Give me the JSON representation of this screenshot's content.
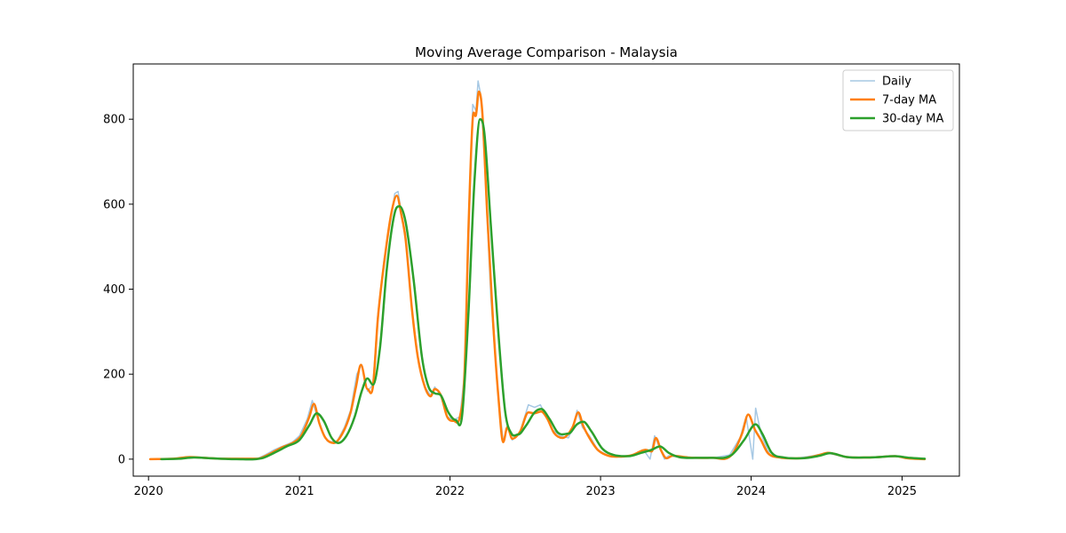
{
  "chart_data": {
    "type": "line",
    "title": "Moving Average Comparison - Malaysia",
    "xlabel": "",
    "ylabel": "",
    "x_range": [
      "2019-11-25",
      "2025-05-20"
    ],
    "ylim": [
      -40,
      930
    ],
    "x_ticks": [
      "2020",
      "2021",
      "2022",
      "2023",
      "2024",
      "2025"
    ],
    "y_ticks": [
      0,
      200,
      400,
      600,
      800
    ],
    "grid": false,
    "legend_position": "top-right",
    "series": [
      {
        "name": "Daily",
        "color": "#a6c8e4",
        "points": [
          [
            "2020-01-05",
            0
          ],
          [
            "2020-02-15",
            0
          ],
          [
            "2020-03-20",
            2
          ],
          [
            "2020-04-10",
            5
          ],
          [
            "2020-05-01",
            3
          ],
          [
            "2020-06-01",
            1
          ],
          [
            "2020-08-01",
            0
          ],
          [
            "2020-09-20",
            1
          ],
          [
            "2020-10-10",
            10
          ],
          [
            "2020-11-01",
            22
          ],
          [
            "2020-11-25",
            32
          ],
          [
            "2020-12-15",
            40
          ],
          [
            "2021-01-01",
            55
          ],
          [
            "2021-01-20",
            95
          ],
          [
            "2021-02-01",
            138
          ],
          [
            "2021-02-10",
            110
          ],
          [
            "2021-02-25",
            65
          ],
          [
            "2021-03-10",
            42
          ],
          [
            "2021-04-01",
            40
          ],
          [
            "2021-04-20",
            75
          ],
          [
            "2021-05-05",
            115
          ],
          [
            "2021-05-20",
            200
          ],
          [
            "2021-06-01",
            222
          ],
          [
            "2021-06-15",
            160
          ],
          [
            "2021-06-28",
            175
          ],
          [
            "2021-07-10",
            340
          ],
          [
            "2021-07-25",
            470
          ],
          [
            "2021-08-10",
            560
          ],
          [
            "2021-08-20",
            625
          ],
          [
            "2021-08-28",
            630
          ],
          [
            "2021-09-05",
            580
          ],
          [
            "2021-09-15",
            530
          ],
          [
            "2021-10-01",
            350
          ],
          [
            "2021-10-15",
            240
          ],
          [
            "2021-11-01",
            170
          ],
          [
            "2021-11-15",
            150
          ],
          [
            "2021-11-25",
            170
          ],
          [
            "2021-12-10",
            150
          ],
          [
            "2021-12-25",
            100
          ],
          [
            "2022-01-10",
            92
          ],
          [
            "2022-01-25",
            100
          ],
          [
            "2022-02-05",
            200
          ],
          [
            "2022-02-15",
            500
          ],
          [
            "2022-02-25",
            835
          ],
          [
            "2022-03-05",
            820
          ],
          [
            "2022-03-10",
            890
          ],
          [
            "2022-03-18",
            850
          ],
          [
            "2022-03-28",
            650
          ],
          [
            "2022-04-10",
            380
          ],
          [
            "2022-04-25",
            180
          ],
          [
            "2022-05-10",
            40
          ],
          [
            "2022-05-20",
            80
          ],
          [
            "2022-06-01",
            45
          ],
          [
            "2022-06-20",
            65
          ],
          [
            "2022-07-10",
            128
          ],
          [
            "2022-07-25",
            122
          ],
          [
            "2022-08-08",
            128
          ],
          [
            "2022-08-20",
            105
          ],
          [
            "2022-09-05",
            70
          ],
          [
            "2022-09-25",
            55
          ],
          [
            "2022-10-15",
            50
          ],
          [
            "2022-10-28",
            80
          ],
          [
            "2022-11-05",
            115
          ],
          [
            "2022-11-18",
            75
          ],
          [
            "2022-12-05",
            55
          ],
          [
            "2022-12-25",
            22
          ],
          [
            "2023-01-20",
            8
          ],
          [
            "2023-02-20",
            5
          ],
          [
            "2023-03-20",
            10
          ],
          [
            "2023-04-15",
            22
          ],
          [
            "2023-05-01",
            0
          ],
          [
            "2023-05-12",
            55
          ],
          [
            "2023-05-25",
            25
          ],
          [
            "2023-06-05",
            0
          ],
          [
            "2023-06-15",
            8
          ],
          [
            "2023-07-10",
            5
          ],
          [
            "2023-08-20",
            2
          ],
          [
            "2023-10-01",
            3
          ],
          [
            "2023-11-10",
            10
          ],
          [
            "2023-12-05",
            50
          ],
          [
            "2023-12-20",
            100
          ],
          [
            "2024-01-05",
            0
          ],
          [
            "2024-01-12",
            120
          ],
          [
            "2024-01-25",
            60
          ],
          [
            "2024-02-10",
            20
          ],
          [
            "2024-03-05",
            5
          ],
          [
            "2024-04-20",
            2
          ],
          [
            "2024-06-01",
            8
          ],
          [
            "2024-07-01",
            15
          ],
          [
            "2024-08-15",
            5
          ],
          [
            "2024-10-15",
            4
          ],
          [
            "2024-12-15",
            7
          ],
          [
            "2025-01-15",
            2
          ],
          [
            "2025-02-25",
            0
          ]
        ]
      },
      {
        "name": "7-day MA",
        "color": "#ff7f0e",
        "points": [
          [
            "2020-01-05",
            0
          ],
          [
            "2020-03-01",
            1
          ],
          [
            "2020-04-10",
            5
          ],
          [
            "2020-05-15",
            3
          ],
          [
            "2020-07-01",
            1
          ],
          [
            "2020-09-20",
            1
          ],
          [
            "2020-10-20",
            12
          ],
          [
            "2020-11-20",
            28
          ],
          [
            "2020-12-15",
            38
          ],
          [
            "2021-01-05",
            55
          ],
          [
            "2021-01-25",
            100
          ],
          [
            "2021-02-05",
            130
          ],
          [
            "2021-02-18",
            85
          ],
          [
            "2021-03-05",
            50
          ],
          [
            "2021-03-25",
            38
          ],
          [
            "2021-04-15",
            60
          ],
          [
            "2021-05-05",
            110
          ],
          [
            "2021-05-18",
            170
          ],
          [
            "2021-05-30",
            222
          ],
          [
            "2021-06-15",
            165
          ],
          [
            "2021-06-28",
            170
          ],
          [
            "2021-07-10",
            330
          ],
          [
            "2021-07-25",
            460
          ],
          [
            "2021-08-12",
            580
          ],
          [
            "2021-08-25",
            620
          ],
          [
            "2021-09-05",
            575
          ],
          [
            "2021-09-15",
            520
          ],
          [
            "2021-10-01",
            350
          ],
          [
            "2021-10-15",
            240
          ],
          [
            "2021-11-01",
            170
          ],
          [
            "2021-11-15",
            148
          ],
          [
            "2021-11-25",
            165
          ],
          [
            "2021-12-10",
            150
          ],
          [
            "2021-12-25",
            100
          ],
          [
            "2022-01-10",
            90
          ],
          [
            "2022-01-25",
            100
          ],
          [
            "2022-02-05",
            200
          ],
          [
            "2022-02-15",
            550
          ],
          [
            "2022-02-25",
            800
          ],
          [
            "2022-03-05",
            810
          ],
          [
            "2022-03-12",
            865
          ],
          [
            "2022-03-20",
            820
          ],
          [
            "2022-04-01",
            580
          ],
          [
            "2022-04-15",
            330
          ],
          [
            "2022-04-28",
            150
          ],
          [
            "2022-05-10",
            40
          ],
          [
            "2022-05-20",
            75
          ],
          [
            "2022-06-01",
            48
          ],
          [
            "2022-06-20",
            65
          ],
          [
            "2022-07-10",
            110
          ],
          [
            "2022-07-25",
            108
          ],
          [
            "2022-08-10",
            112
          ],
          [
            "2022-08-25",
            95
          ],
          [
            "2022-09-10",
            62
          ],
          [
            "2022-10-01",
            50
          ],
          [
            "2022-10-25",
            75
          ],
          [
            "2022-11-08",
            110
          ],
          [
            "2022-11-20",
            78
          ],
          [
            "2022-12-05",
            50
          ],
          [
            "2022-12-25",
            22
          ],
          [
            "2023-01-20",
            8
          ],
          [
            "2023-02-20",
            6
          ],
          [
            "2023-03-20",
            10
          ],
          [
            "2023-04-20",
            22
          ],
          [
            "2023-05-05",
            18
          ],
          [
            "2023-05-15",
            50
          ],
          [
            "2023-05-28",
            20
          ],
          [
            "2023-06-10",
            2
          ],
          [
            "2023-06-25",
            8
          ],
          [
            "2023-08-01",
            4
          ],
          [
            "2023-10-01",
            3
          ],
          [
            "2023-11-15",
            10
          ],
          [
            "2023-12-10",
            60
          ],
          [
            "2023-12-25",
            105
          ],
          [
            "2024-01-10",
            70
          ],
          [
            "2024-01-25",
            45
          ],
          [
            "2024-02-10",
            15
          ],
          [
            "2024-03-10",
            4
          ],
          [
            "2024-05-01",
            2
          ],
          [
            "2024-06-15",
            10
          ],
          [
            "2024-07-05",
            15
          ],
          [
            "2024-08-20",
            5
          ],
          [
            "2024-10-15",
            4
          ],
          [
            "2024-12-15",
            7
          ],
          [
            "2025-01-15",
            2
          ],
          [
            "2025-02-25",
            0
          ]
        ]
      },
      {
        "name": "30-day MA",
        "color": "#2ca02c",
        "points": [
          [
            "2020-02-01",
            0
          ],
          [
            "2020-03-15",
            1
          ],
          [
            "2020-04-20",
            4
          ],
          [
            "2020-06-01",
            2
          ],
          [
            "2020-08-01",
            0
          ],
          [
            "2020-10-01",
            2
          ],
          [
            "2020-11-01",
            15
          ],
          [
            "2020-12-01",
            30
          ],
          [
            "2021-01-01",
            45
          ],
          [
            "2021-01-25",
            80
          ],
          [
            "2021-02-12",
            108
          ],
          [
            "2021-03-01",
            90
          ],
          [
            "2021-03-20",
            50
          ],
          [
            "2021-04-05",
            38
          ],
          [
            "2021-04-25",
            55
          ],
          [
            "2021-05-15",
            100
          ],
          [
            "2021-06-01",
            160
          ],
          [
            "2021-06-15",
            190
          ],
          [
            "2021-06-28",
            175
          ],
          [
            "2021-07-15",
            260
          ],
          [
            "2021-08-01",
            450
          ],
          [
            "2021-08-20",
            580
          ],
          [
            "2021-09-01",
            595
          ],
          [
            "2021-09-15",
            560
          ],
          [
            "2021-10-05",
            420
          ],
          [
            "2021-10-25",
            240
          ],
          [
            "2021-11-10",
            170
          ],
          [
            "2021-11-25",
            155
          ],
          [
            "2021-12-10",
            150
          ],
          [
            "2021-12-28",
            110
          ],
          [
            "2022-01-15",
            92
          ],
          [
            "2022-01-30",
            100
          ],
          [
            "2022-02-15",
            350
          ],
          [
            "2022-03-01",
            650
          ],
          [
            "2022-03-15",
            800
          ],
          [
            "2022-03-25",
            770
          ],
          [
            "2022-04-10",
            550
          ],
          [
            "2022-04-28",
            300
          ],
          [
            "2022-05-15",
            110
          ],
          [
            "2022-05-30",
            60
          ],
          [
            "2022-06-15",
            58
          ],
          [
            "2022-07-05",
            80
          ],
          [
            "2022-07-25",
            110
          ],
          [
            "2022-08-10",
            118
          ],
          [
            "2022-08-30",
            95
          ],
          [
            "2022-09-20",
            62
          ],
          [
            "2022-10-15",
            60
          ],
          [
            "2022-11-05",
            82
          ],
          [
            "2022-11-20",
            88
          ],
          [
            "2022-12-10",
            65
          ],
          [
            "2023-01-05",
            25
          ],
          [
            "2023-02-01",
            10
          ],
          [
            "2023-03-10",
            7
          ],
          [
            "2023-04-10",
            15
          ],
          [
            "2023-05-05",
            22
          ],
          [
            "2023-05-25",
            30
          ],
          [
            "2023-06-15",
            15
          ],
          [
            "2023-07-10",
            5
          ],
          [
            "2023-08-20",
            3
          ],
          [
            "2023-10-01",
            3
          ],
          [
            "2023-11-15",
            10
          ],
          [
            "2023-12-15",
            45
          ],
          [
            "2024-01-12",
            82
          ],
          [
            "2024-01-28",
            60
          ],
          [
            "2024-02-20",
            15
          ],
          [
            "2024-03-20",
            4
          ],
          [
            "2024-05-01",
            2
          ],
          [
            "2024-06-15",
            8
          ],
          [
            "2024-07-10",
            14
          ],
          [
            "2024-08-20",
            5
          ],
          [
            "2024-10-15",
            4
          ],
          [
            "2024-12-15",
            7
          ],
          [
            "2025-01-20",
            3
          ],
          [
            "2025-02-25",
            1
          ]
        ]
      }
    ]
  }
}
